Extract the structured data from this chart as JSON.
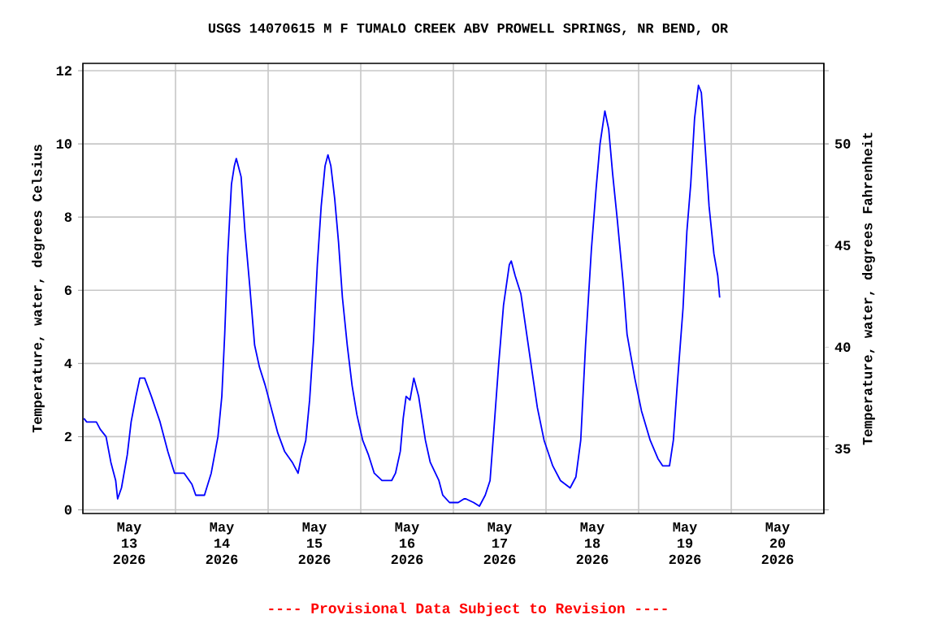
{
  "chart_data": {
    "type": "line",
    "title": "USGS 14070615 M F TUMALO CREEK ABV PROWELL SPRINGS, NR BEND, OR",
    "ylabel": "Temperature, water, degrees Celsius",
    "y2label": "Temperature, water, degrees Fahrenheit",
    "annotations": [
      "---- Provisional Data Subject to Revision ----"
    ],
    "color": "#0000ff",
    "grid": true,
    "marker": "none",
    "line_style": "solid",
    "xlim": [
      "2026-05-13T00:00",
      "2026-05-21T00:00"
    ],
    "xticks": [
      {
        "value": "2026-05-13T00:00",
        "label": null
      },
      {
        "value": "2026-05-13T12:00",
        "label": "May 13 2026"
      },
      {
        "value": "2026-05-14T00:00",
        "label": null
      },
      {
        "value": "2026-05-14T12:00",
        "label": "May 14 2026"
      },
      {
        "value": "2026-05-15T00:00",
        "label": null
      },
      {
        "value": "2026-05-15T12:00",
        "label": "May 15 2026"
      },
      {
        "value": "2026-05-16T00:00",
        "label": null
      },
      {
        "value": "2026-05-16T12:00",
        "label": "May 16 2026"
      },
      {
        "value": "2026-05-17T00:00",
        "label": null
      },
      {
        "value": "2026-05-17T12:00",
        "label": "May 17 2026"
      },
      {
        "value": "2026-05-18T00:00",
        "label": null
      },
      {
        "value": "2026-05-18T12:00",
        "label": "May 18 2026"
      },
      {
        "value": "2026-05-19T00:00",
        "label": null
      },
      {
        "value": "2026-05-19T12:00",
        "label": "May 19 2026"
      },
      {
        "value": "2026-05-20T00:00",
        "label": null
      },
      {
        "value": "2026-05-20T12:00",
        "label": "May 20 2026"
      },
      {
        "value": "2026-05-21T00:00",
        "label": null
      }
    ],
    "ylim": [
      -0.1,
      12.2
    ],
    "yticks": [
      0,
      2,
      4,
      6,
      8,
      10,
      12
    ],
    "y2lim": [
      31.82,
      53.96
    ],
    "y2ticks": [
      35,
      40,
      45,
      50
    ],
    "x": [
      "2026-05-13T00:15",
      "2026-05-13T01:00",
      "2026-05-13T03:30",
      "2026-05-13T04:30",
      "2026-05-13T06:00",
      "2026-05-13T07:15",
      "2026-05-13T08:30",
      "2026-05-13T09:00",
      "2026-05-13T10:00",
      "2026-05-13T11:30",
      "2026-05-13T12:30",
      "2026-05-13T13:45",
      "2026-05-13T14:45",
      "2026-05-13T16:00",
      "2026-05-13T17:45",
      "2026-05-13T20:00",
      "2026-05-13T22:00",
      "2026-05-13T23:45",
      "2026-05-14T02:15",
      "2026-05-14T04:15",
      "2026-05-14T05:15",
      "2026-05-14T07:30",
      "2026-05-14T09:15",
      "2026-05-14T11:00",
      "2026-05-14T12:00",
      "2026-05-14T12:45",
      "2026-05-14T13:30",
      "2026-05-14T14:30",
      "2026-05-14T15:15",
      "2026-05-14T15:45",
      "2026-05-14T17:00",
      "2026-05-14T18:00",
      "2026-05-14T19:15",
      "2026-05-14T20:30",
      "2026-05-14T21:45",
      "2026-05-14T23:15",
      "2026-05-15T00:45",
      "2026-05-15T02:30",
      "2026-05-15T04:15",
      "2026-05-15T06:15",
      "2026-05-15T07:45",
      "2026-05-15T08:30",
      "2026-05-15T09:45",
      "2026-05-15T10:45",
      "2026-05-15T11:45",
      "2026-05-15T12:45",
      "2026-05-15T13:45",
      "2026-05-15T14:45",
      "2026-05-15T15:30",
      "2026-05-15T16:15",
      "2026-05-15T17:15",
      "2026-05-15T18:15",
      "2026-05-15T19:15",
      "2026-05-15T20:30",
      "2026-05-15T21:45",
      "2026-05-15T23:00",
      "2026-05-16T00:30",
      "2026-05-16T02:00",
      "2026-05-16T03:30",
      "2026-05-16T05:30",
      "2026-05-16T08:00",
      "2026-05-16T09:00",
      "2026-05-16T10:15",
      "2026-05-16T11:00",
      "2026-05-16T11:45",
      "2026-05-16T12:45",
      "2026-05-16T13:45",
      "2026-05-16T15:00",
      "2026-05-16T16:45",
      "2026-05-16T18:00",
      "2026-05-16T20:15",
      "2026-05-16T21:15",
      "2026-05-16T23:00",
      "2026-05-17T01:15",
      "2026-05-17T02:45",
      "2026-05-17T03:15",
      "2026-05-17T05:15",
      "2026-05-17T06:45",
      "2026-05-17T08:15",
      "2026-05-17T09:30",
      "2026-05-17T10:30",
      "2026-05-17T11:45",
      "2026-05-17T13:00",
      "2026-05-17T14:30",
      "2026-05-17T15:00",
      "2026-05-17T16:00",
      "2026-05-17T17:30",
      "2026-05-17T19:00",
      "2026-05-17T20:30",
      "2026-05-17T21:45",
      "2026-05-17T23:30",
      "2026-05-18T01:45",
      "2026-05-18T03:45",
      "2026-05-18T06:15",
      "2026-05-18T07:45",
      "2026-05-18T09:00",
      "2026-05-18T10:15",
      "2026-05-18T11:45",
      "2026-05-18T13:00",
      "2026-05-18T14:00",
      "2026-05-18T15:15",
      "2026-05-18T16:15",
      "2026-05-18T17:15",
      "2026-05-18T18:30",
      "2026-05-18T20:00",
      "2026-05-18T21:00",
      "2026-05-18T23:00",
      "2026-05-19T00:45",
      "2026-05-19T03:00",
      "2026-05-19T05:00",
      "2026-05-19T06:15",
      "2026-05-19T08:00",
      "2026-05-19T09:00",
      "2026-05-19T10:00",
      "2026-05-19T11:30",
      "2026-05-19T12:30",
      "2026-05-19T13:30",
      "2026-05-19T14:30",
      "2026-05-19T15:30",
      "2026-05-19T16:15",
      "2026-05-19T17:15",
      "2026-05-19T18:15",
      "2026-05-19T19:30",
      "2026-05-19T20:30",
      "2026-05-19T21:00"
    ],
    "values": [
      2.5,
      2.4,
      2.4,
      2.2,
      2.0,
      1.3,
      0.8,
      0.3,
      0.6,
      1.5,
      2.4,
      3.1,
      3.6,
      3.6,
      3.1,
      2.4,
      1.6,
      1.0,
      1.0,
      0.7,
      0.4,
      0.4,
      1.0,
      2.0,
      3.1,
      4.8,
      6.9,
      8.9,
      9.4,
      9.6,
      9.1,
      7.6,
      6.1,
      4.5,
      3.9,
      3.4,
      2.8,
      2.1,
      1.6,
      1.3,
      1.0,
      1.4,
      1.9,
      3.0,
      4.6,
      6.7,
      8.3,
      9.4,
      9.7,
      9.4,
      8.5,
      7.3,
      5.8,
      4.5,
      3.4,
      2.6,
      1.9,
      1.5,
      1.0,
      0.8,
      0.8,
      1.0,
      1.6,
      2.5,
      3.1,
      3.0,
      3.6,
      3.1,
      1.9,
      1.3,
      0.8,
      0.4,
      0.2,
      0.2,
      0.3,
      0.3,
      0.2,
      0.1,
      0.4,
      0.8,
      2.2,
      4.0,
      5.6,
      6.7,
      6.8,
      6.4,
      5.9,
      4.8,
      3.7,
      2.8,
      1.9,
      1.2,
      0.8,
      0.6,
      0.9,
      1.9,
      4.5,
      7.1,
      8.8,
      10.0,
      10.9,
      10.4,
      9.2,
      7.9,
      6.2,
      4.8,
      3.6,
      2.7,
      1.9,
      1.4,
      1.2,
      1.2,
      1.9,
      3.4,
      5.5,
      7.6,
      8.9,
      10.7,
      11.6,
      11.4,
      9.9,
      8.3,
      7.0,
      6.4,
      5.8
    ]
  }
}
